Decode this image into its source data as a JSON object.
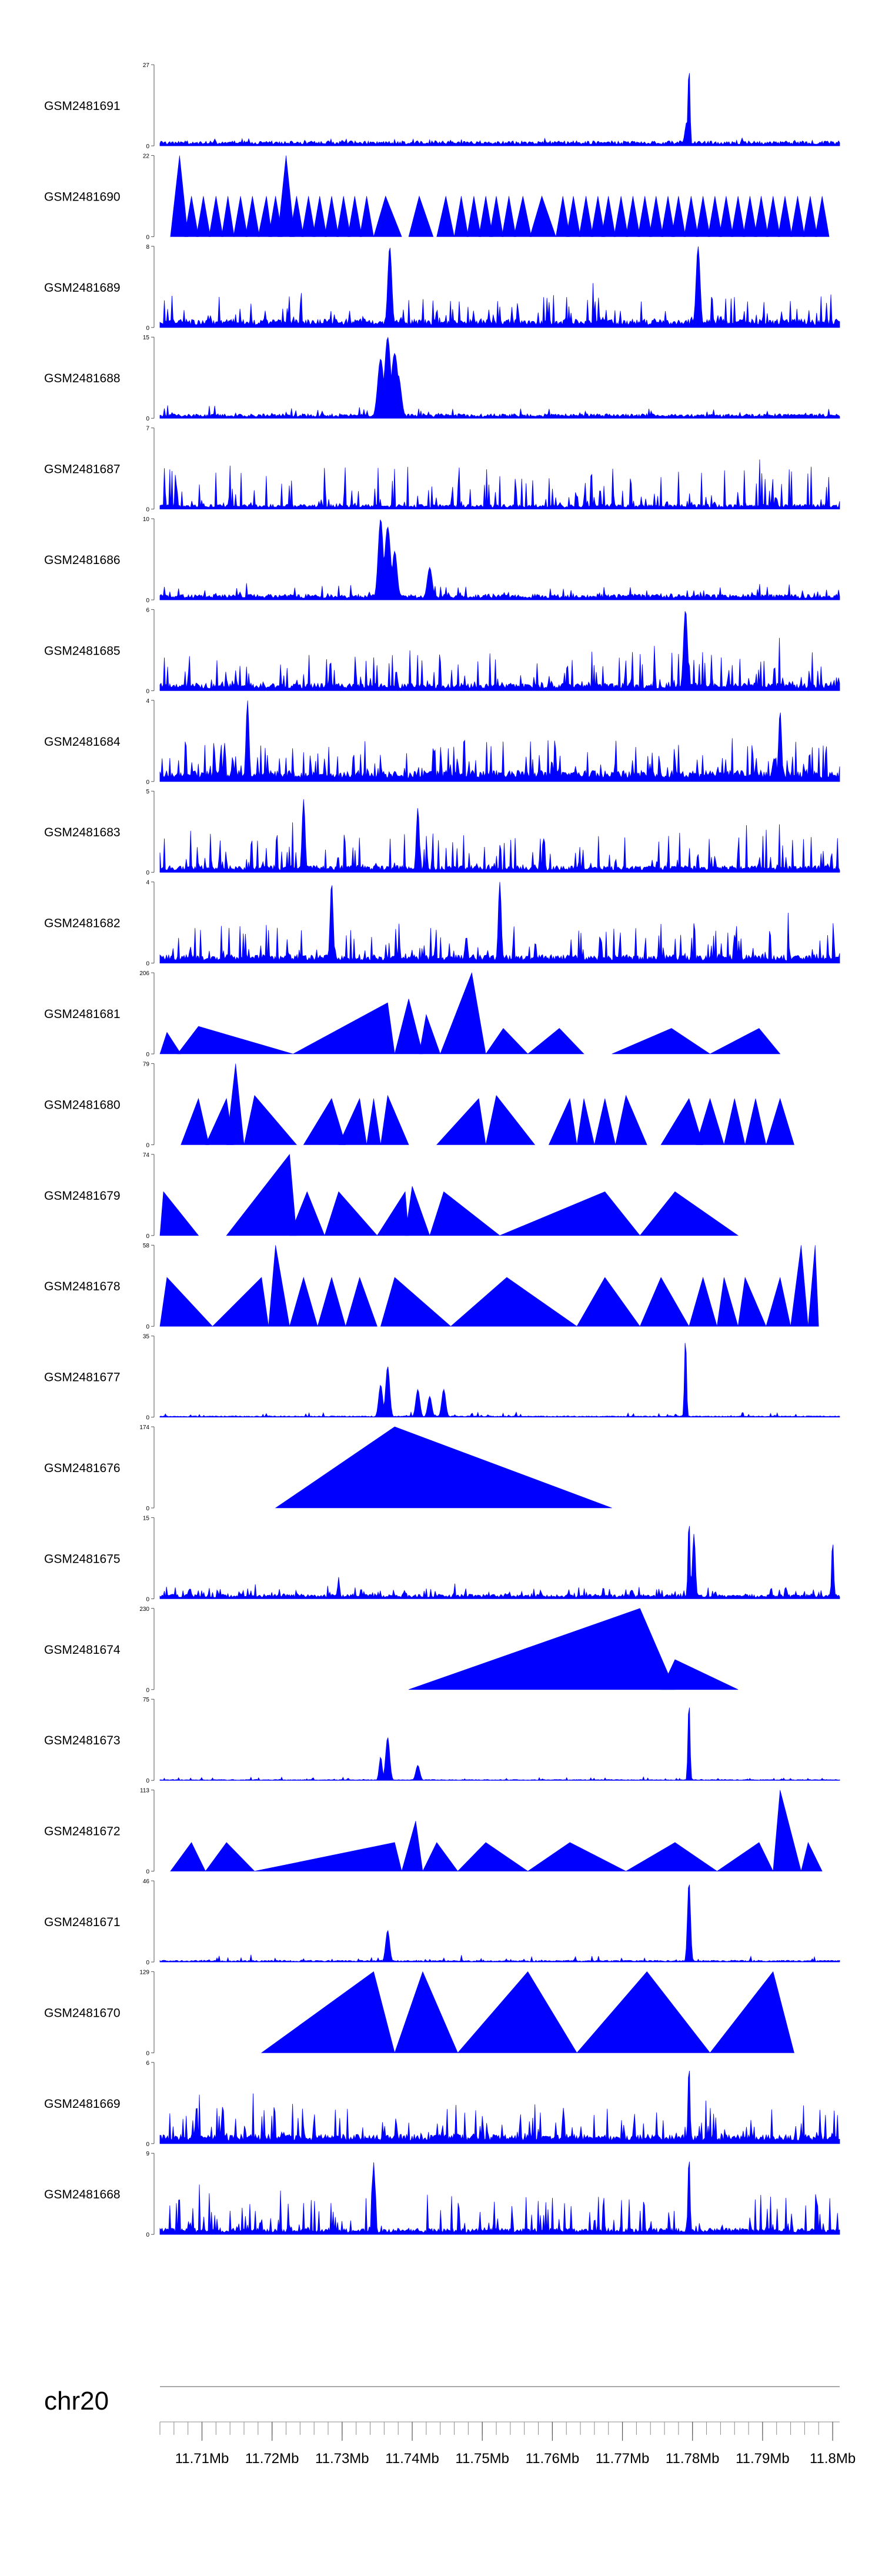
{
  "chart_data": {
    "type": "area",
    "title": "",
    "chromosome": "chr20",
    "x_range": [
      11.704,
      11.801
    ],
    "x_unit": "Mb",
    "x_tick_labels": [
      "11.71Mb",
      "11.72Mb",
      "11.73Mb",
      "11.74Mb",
      "11.75Mb",
      "11.76Mb",
      "11.77Mb",
      "11.78Mb",
      "11.79Mb",
      "11.8Mb"
    ],
    "x_tick_values": [
      11.71,
      11.72,
      11.73,
      11.74,
      11.75,
      11.76,
      11.77,
      11.78,
      11.79,
      11.8
    ],
    "fill_color": "#0000ff",
    "tracks": [
      {
        "name": "GSM2481691",
        "ymax": 27,
        "style": "dense",
        "base": 1.2,
        "noise": 1.2,
        "peaks": [
          [
            11.7795,
            27,
            0.0002
          ],
          [
            11.7792,
            8,
            0.0004
          ]
        ]
      },
      {
        "name": "GSM2481690",
        "ymax": 22,
        "style": "tri",
        "tris": [
          [
            11.7055,
            11.7068,
            11.708,
            22
          ],
          [
            11.7075,
            11.7085,
            11.7095,
            11
          ],
          [
            11.7092,
            11.7102,
            11.7112,
            11
          ],
          [
            11.711,
            11.712,
            11.713,
            11
          ],
          [
            11.7128,
            11.7137,
            11.7146,
            11
          ],
          [
            11.7145,
            11.7155,
            11.7165,
            11
          ],
          [
            11.7162,
            11.7172,
            11.7182,
            11
          ],
          [
            11.718,
            11.7192,
            11.72,
            11
          ],
          [
            11.7195,
            11.7205,
            11.7215,
            11
          ],
          [
            11.7208,
            11.722,
            11.7232,
            22
          ],
          [
            11.7225,
            11.7235,
            11.7245,
            11
          ],
          [
            11.7242,
            11.7252,
            11.7262,
            11
          ],
          [
            11.7258,
            11.7268,
            11.7278,
            11
          ],
          [
            11.7275,
            11.7285,
            11.7295,
            11
          ],
          [
            11.7292,
            11.7302,
            11.7312,
            11
          ],
          [
            11.7308,
            11.7318,
            11.7328,
            11
          ],
          [
            11.7325,
            11.7335,
            11.7345,
            11
          ],
          [
            11.7345,
            11.7362,
            11.7385,
            11
          ],
          [
            11.7395,
            11.741,
            11.743,
            11
          ],
          [
            11.7435,
            11.7448,
            11.746,
            11
          ],
          [
            11.746,
            11.747,
            11.748,
            11
          ],
          [
            11.7478,
            11.7488,
            11.7498,
            11
          ],
          [
            11.7495,
            11.7505,
            11.7515,
            11
          ],
          [
            11.751,
            11.752,
            11.753,
            11
          ],
          [
            11.7528,
            11.7538,
            11.7548,
            11
          ],
          [
            11.7545,
            11.7558,
            11.757,
            11
          ],
          [
            11.7568,
            11.7585,
            11.7605,
            11
          ],
          [
            11.7605,
            11.7615,
            11.7625,
            11
          ],
          [
            11.762,
            11.763,
            11.764,
            11
          ],
          [
            11.7638,
            11.7648,
            11.7658,
            11
          ],
          [
            11.7655,
            11.7665,
            11.7675,
            11
          ],
          [
            11.767,
            11.768,
            11.769,
            11
          ],
          [
            11.7688,
            11.7698,
            11.7708,
            11
          ],
          [
            11.7705,
            11.7715,
            11.7725,
            11
          ],
          [
            11.7722,
            11.7732,
            11.7742,
            11
          ],
          [
            11.7738,
            11.7748,
            11.7758,
            11
          ],
          [
            11.7755,
            11.7765,
            11.7775,
            11
          ],
          [
            11.777,
            11.778,
            11.779,
            11
          ],
          [
            11.7788,
            11.7798,
            11.7808,
            11
          ],
          [
            11.7805,
            11.7815,
            11.7825,
            11
          ],
          [
            11.7822,
            11.7832,
            11.7842,
            11
          ],
          [
            11.7838,
            11.7848,
            11.7858,
            11
          ],
          [
            11.7855,
            11.7865,
            11.7875,
            11
          ],
          [
            11.7872,
            11.7882,
            11.7892,
            11
          ],
          [
            11.7888,
            11.7898,
            11.7908,
            11
          ],
          [
            11.7905,
            11.7915,
            11.7925,
            11
          ],
          [
            11.7922,
            11.7932,
            11.7942,
            11
          ],
          [
            11.794,
            11.795,
            11.796,
            11
          ],
          [
            11.7958,
            11.7968,
            11.7978,
            11
          ],
          [
            11.7975,
            11.7985,
            11.7995,
            11
          ]
        ]
      },
      {
        "name": "GSM2481689",
        "ymax": 8,
        "style": "spiky",
        "base": 0.6,
        "noise": 2.6,
        "peaks": [
          [
            11.7368,
            8,
            0.0004
          ],
          [
            11.7808,
            8,
            0.0004
          ]
        ]
      },
      {
        "name": "GSM2481688",
        "ymax": 15,
        "style": "dense",
        "base": 0.6,
        "noise": 1.8,
        "peaks": [
          [
            11.7355,
            11,
            0.0006
          ],
          [
            11.7365,
            15,
            0.0006
          ],
          [
            11.7375,
            12,
            0.0007
          ],
          [
            11.738,
            8,
            0.0006
          ]
        ]
      },
      {
        "name": "GSM2481687",
        "ymax": 7,
        "style": "spiky",
        "base": 0.3,
        "noise": 3.4,
        "peaks": []
      },
      {
        "name": "GSM2481686",
        "ymax": 10,
        "style": "dense",
        "base": 0.5,
        "noise": 1.5,
        "peaks": [
          [
            11.7355,
            10,
            0.0005
          ],
          [
            11.7365,
            9,
            0.0006
          ],
          [
            11.7375,
            6,
            0.0005
          ],
          [
            11.7425,
            4,
            0.0005
          ]
        ]
      },
      {
        "name": "GSM2481685",
        "ymax": 6,
        "style": "spiky",
        "base": 0.4,
        "noise": 2.6,
        "peaks": [
          [
            11.779,
            6,
            0.0004
          ]
        ]
      },
      {
        "name": "GSM2481684",
        "ymax": 4,
        "style": "spiky",
        "base": 0.4,
        "noise": 1.6,
        "peaks": [
          [
            11.7165,
            4,
            0.0003
          ],
          [
            11.7925,
            3.5,
            0.0003
          ]
        ]
      },
      {
        "name": "GSM2481683",
        "ymax": 5,
        "style": "spiky",
        "base": 0.3,
        "noise": 2.1,
        "peaks": [
          [
            11.7245,
            4.5,
            0.0003
          ],
          [
            11.7408,
            4,
            0.0003
          ]
        ]
      },
      {
        "name": "GSM2481682",
        "ymax": 4,
        "style": "spiky",
        "base": 0.3,
        "noise": 1.7,
        "peaks": [
          [
            11.7285,
            4,
            0.0003
          ],
          [
            11.7525,
            4,
            0.0003
          ]
        ]
      },
      {
        "name": "GSM2481681",
        "ymax": 206,
        "style": "tri",
        "tris": [
          [
            11.704,
            11.705,
            11.707,
            55
          ],
          [
            11.7065,
            11.7095,
            11.723,
            70
          ],
          [
            11.723,
            11.7365,
            11.7375,
            130
          ],
          [
            11.7375,
            11.7395,
            11.7415,
            140
          ],
          [
            11.741,
            11.742,
            11.744,
            100
          ],
          [
            11.744,
            11.7485,
            11.7505,
            206
          ],
          [
            11.7505,
            11.753,
            11.7565,
            65
          ],
          [
            11.7565,
            11.761,
            11.7645,
            65
          ],
          [
            11.7685,
            11.777,
            11.7825,
            65
          ],
          [
            11.7825,
            11.7895,
            11.7925,
            65
          ]
        ]
      },
      {
        "name": "GSM2481680",
        "ymax": 79,
        "style": "tri",
        "tris": [
          [
            11.707,
            11.7095,
            11.711,
            45
          ],
          [
            11.7105,
            11.7135,
            11.7145,
            45
          ],
          [
            11.7135,
            11.7148,
            11.716,
            79
          ],
          [
            11.716,
            11.7175,
            11.7235,
            48
          ],
          [
            11.7245,
            11.7285,
            11.7305,
            45
          ],
          [
            11.7295,
            11.7325,
            11.7335,
            45
          ],
          [
            11.7335,
            11.7345,
            11.7355,
            45
          ],
          [
            11.7355,
            11.7365,
            11.7395,
            48
          ],
          [
            11.7435,
            11.7495,
            11.7505,
            45
          ],
          [
            11.7505,
            11.752,
            11.7575,
            48
          ],
          [
            11.7595,
            11.7625,
            11.7635,
            45
          ],
          [
            11.7635,
            11.7645,
            11.766,
            45
          ],
          [
            11.766,
            11.7675,
            11.769,
            45
          ],
          [
            11.769,
            11.7705,
            11.7735,
            48
          ],
          [
            11.7755,
            11.7795,
            11.7815,
            45
          ],
          [
            11.7805,
            11.7825,
            11.7845,
            45
          ],
          [
            11.7845,
            11.786,
            11.7875,
            45
          ],
          [
            11.7875,
            11.789,
            11.7905,
            45
          ],
          [
            11.7905,
            11.7925,
            11.7945,
            45
          ]
        ]
      },
      {
        "name": "GSM2481679",
        "ymax": 74,
        "style": "tri",
        "tris": [
          [
            11.704,
            11.7045,
            11.7095,
            40
          ],
          [
            11.7135,
            11.7225,
            11.7235,
            74
          ],
          [
            11.7225,
            11.725,
            11.7275,
            40
          ],
          [
            11.7275,
            11.7295,
            11.735,
            40
          ],
          [
            11.735,
            11.739,
            11.7395,
            40
          ],
          [
            11.739,
            11.74,
            11.7425,
            45
          ],
          [
            11.7425,
            11.7445,
            11.7525,
            40
          ],
          [
            11.7525,
            11.7675,
            11.7725,
            40
          ],
          [
            11.7725,
            11.7775,
            11.7865,
            40
          ]
        ]
      },
      {
        "name": "GSM2481678",
        "ymax": 58,
        "style": "tri",
        "tris": [
          [
            11.704,
            11.705,
            11.7115,
            35
          ],
          [
            11.7115,
            11.7185,
            11.7195,
            35
          ],
          [
            11.7195,
            11.7205,
            11.7225,
            58
          ],
          [
            11.7225,
            11.7245,
            11.7265,
            35
          ],
          [
            11.7265,
            11.7285,
            11.7305,
            35
          ],
          [
            11.7305,
            11.7325,
            11.735,
            35
          ],
          [
            11.7355,
            11.7375,
            11.7455,
            35
          ],
          [
            11.7455,
            11.7535,
            11.7635,
            35
          ],
          [
            11.7635,
            11.7675,
            11.7725,
            35
          ],
          [
            11.7725,
            11.7755,
            11.7795,
            35
          ],
          [
            11.7795,
            11.7815,
            11.7835,
            35
          ],
          [
            11.7835,
            11.7845,
            11.7865,
            35
          ],
          [
            11.7865,
            11.7875,
            11.7905,
            35
          ],
          [
            11.7905,
            11.7925,
            11.794,
            35
          ],
          [
            11.794,
            11.7955,
            11.7965,
            58
          ],
          [
            11.7965,
            11.7975,
            11.798,
            58
          ]
        ]
      },
      {
        "name": "GSM2481677",
        "ymax": 35,
        "style": "dense",
        "base": 0.4,
        "noise": 1.8,
        "peaks": [
          [
            11.7355,
            14,
            0.0004
          ],
          [
            11.7365,
            22,
            0.0004
          ],
          [
            11.7408,
            12,
            0.0004
          ],
          [
            11.7425,
            9,
            0.0004
          ],
          [
            11.7445,
            12,
            0.0004
          ],
          [
            11.779,
            35,
            0.0002
          ]
        ]
      },
      {
        "name": "GSM2481676",
        "ymax": 174,
        "style": "tri",
        "tris": [
          [
            11.7205,
            11.7375,
            11.7685,
            174
          ]
        ]
      },
      {
        "name": "GSM2481675",
        "ymax": 15,
        "style": "spiky",
        "base": 0.6,
        "noise": 1.5,
        "peaks": [
          [
            11.7295,
            4,
            0.0002
          ],
          [
            11.7795,
            15,
            0.0002
          ],
          [
            11.7802,
            12,
            0.0003
          ],
          [
            11.8,
            11,
            0.0002
          ]
        ]
      },
      {
        "name": "GSM2481674",
        "ymax": 230,
        "style": "tri",
        "tris": [
          [
            11.7395,
            11.7725,
            11.7775,
            230
          ],
          [
            11.7755,
            11.7775,
            11.7865,
            85
          ]
        ]
      },
      {
        "name": "GSM2481673",
        "ymax": 75,
        "style": "dense",
        "base": 0.6,
        "noise": 2.5,
        "peaks": [
          [
            11.7355,
            22,
            0.0003
          ],
          [
            11.7365,
            40,
            0.0004
          ],
          [
            11.7408,
            14,
            0.0004
          ],
          [
            11.7795,
            75,
            0.0002
          ]
        ]
      },
      {
        "name": "GSM2481672",
        "ymax": 113,
        "style": "tri",
        "tris": [
          [
            11.7055,
            11.7085,
            11.7105,
            40
          ],
          [
            11.7105,
            11.7135,
            11.7175,
            40
          ],
          [
            11.7175,
            11.7375,
            11.7385,
            40
          ],
          [
            11.7385,
            11.7405,
            11.7415,
            70
          ],
          [
            11.7415,
            11.7435,
            11.7465,
            40
          ],
          [
            11.7465,
            11.7505,
            11.7565,
            40
          ],
          [
            11.7565,
            11.7625,
            11.7705,
            40
          ],
          [
            11.7705,
            11.7775,
            11.7835,
            40
          ],
          [
            11.7835,
            11.7895,
            11.7915,
            40
          ],
          [
            11.7915,
            11.7925,
            11.7955,
            113
          ],
          [
            11.7955,
            11.7965,
            11.7985,
            40
          ]
        ]
      },
      {
        "name": "GSM2481671",
        "ymax": 46,
        "style": "dense",
        "base": 0.7,
        "noise": 3.5,
        "peaks": [
          [
            11.7365,
            18,
            0.0004
          ],
          [
            11.7795,
            46,
            0.0003
          ]
        ]
      },
      {
        "name": "GSM2481670",
        "ymax": 129,
        "style": "tri",
        "tris": [
          [
            11.7185,
            11.7345,
            11.7375,
            129
          ],
          [
            11.7375,
            11.7415,
            11.7465,
            129
          ],
          [
            11.7465,
            11.7565,
            11.7635,
            129
          ],
          [
            11.7635,
            11.7735,
            11.7825,
            129
          ],
          [
            11.7825,
            11.7915,
            11.7945,
            129
          ]
        ]
      },
      {
        "name": "GSM2481669",
        "ymax": 6,
        "style": "spiky",
        "base": 0.5,
        "noise": 2.3,
        "peaks": [
          [
            11.7795,
            6,
            0.0002
          ]
        ]
      },
      {
        "name": "GSM2481668",
        "ymax": 9,
        "style": "spiky",
        "base": 0.5,
        "noise": 4.1,
        "peaks": [
          [
            11.7345,
            8,
            0.0003
          ],
          [
            11.7795,
            9,
            0.0002
          ]
        ]
      }
    ]
  }
}
